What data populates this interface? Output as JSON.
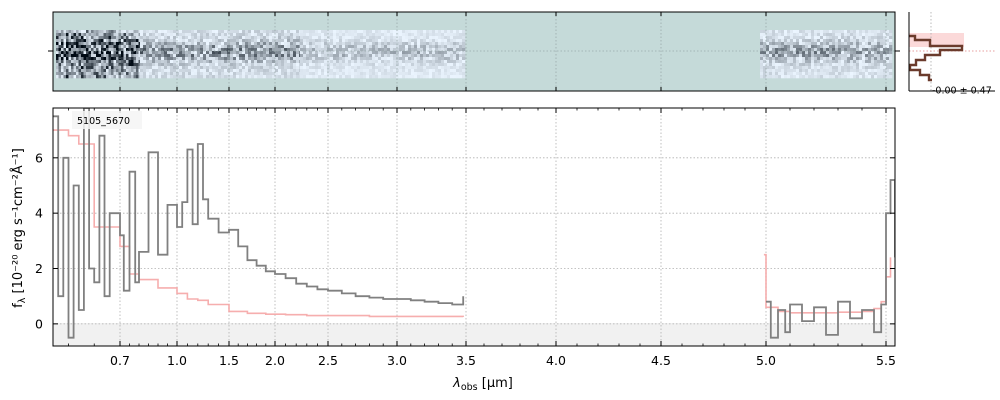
{
  "chart_data": {
    "type": "line",
    "object_id": "5105_5670",
    "xlabel_symbol": "λ",
    "xlabel_sub": "obs",
    "xlabel_unit": " [μm]",
    "ylabel_prefix": "f",
    "ylabel_sub": "λ",
    "ylabel_unit": " [10⁻²⁰ erg s⁻¹cm⁻²Å⁻¹]",
    "x_tick_labels": [
      "0.7",
      "1.0",
      "1.5",
      "2.0",
      "2.5",
      "3.0",
      "3.5",
      "4.0",
      "4.5",
      "5.0",
      "5.5"
    ],
    "y_tick_labels": [
      "0",
      "2",
      "4",
      "6"
    ],
    "ylim": [
      -0.8,
      7.8
    ],
    "grid": true,
    "hist_annotation": "-0.00 ± 0.47",
    "series": [
      {
        "role": "flux",
        "color": "#808080",
        "segments": [
          {
            "x": [
              0.57,
              0.58,
              0.59,
              0.6,
              0.61,
              0.62,
              0.63,
              0.64,
              0.65,
              0.66,
              0.67,
              0.68,
              0.7,
              0.72,
              0.75,
              0.78,
              0.8,
              0.85,
              0.9,
              0.95,
              1.0,
              1.05,
              1.1,
              1.15,
              1.2,
              1.25,
              1.3,
              1.4,
              1.5,
              1.6,
              1.7,
              1.8,
              1.9,
              2.0,
              2.1,
              2.2,
              2.3,
              2.4,
              2.5,
              2.6,
              2.7,
              2.8,
              2.9,
              3.0,
              3.1,
              3.2,
              3.3,
              3.4,
              3.48
            ],
            "y": [
              7.5,
              1.0,
              6.0,
              -0.5,
              5.0,
              0.5,
              7.8,
              2.0,
              1.5,
              6.8,
              1.0,
              4.0,
              3.2,
              1.2,
              5.5,
              1.5,
              2.6,
              6.2,
              2.5,
              4.3,
              3.5,
              4.4,
              6.3,
              3.6,
              6.5,
              4.5,
              3.8,
              3.3,
              3.4,
              2.8,
              2.3,
              2.1,
              1.9,
              1.8,
              1.65,
              1.45,
              1.35,
              1.25,
              1.2,
              1.1,
              1.0,
              0.95,
              0.9,
              0.9,
              0.85,
              0.8,
              0.75,
              0.7,
              1.0
            ]
          },
          {
            "x": [
              5.0,
              5.02,
              5.05,
              5.08,
              5.1,
              5.15,
              5.2,
              5.25,
              5.3,
              5.35,
              5.4,
              5.45,
              5.48,
              5.5,
              5.51,
              5.52
            ],
            "y": [
              0.8,
              -0.5,
              0.5,
              -0.3,
              0.7,
              0.1,
              0.6,
              -0.4,
              0.8,
              0.2,
              0.5,
              -0.3,
              0.7,
              4.0,
              5.2,
              2.4
            ]
          }
        ]
      },
      {
        "role": "model",
        "color": "#f4a0a0",
        "segments": [
          {
            "x": [
              0.57,
              0.6,
              0.62,
              0.65,
              0.7,
              0.75,
              0.8,
              0.9,
              1.0,
              1.1,
              1.2,
              1.3,
              1.5,
              1.7,
              1.9,
              2.1,
              2.3,
              2.5,
              2.8,
              3.1,
              3.4,
              3.48
            ],
            "y": [
              7.0,
              6.8,
              6.5,
              3.5,
              2.8,
              1.8,
              1.6,
              1.3,
              1.1,
              0.9,
              0.85,
              0.7,
              0.45,
              0.38,
              0.35,
              0.33,
              0.3,
              0.3,
              0.27,
              0.27,
              0.27,
              0.25
            ]
          },
          {
            "x": [
              4.99,
              5.0,
              5.05,
              5.1,
              5.2,
              5.3,
              5.4,
              5.45,
              5.48,
              5.5,
              5.51
            ],
            "y": [
              2.5,
              0.6,
              0.45,
              0.4,
              0.4,
              0.42,
              0.45,
              0.55,
              0.8,
              1.7,
              2.4
            ]
          }
        ]
      }
    ]
  }
}
